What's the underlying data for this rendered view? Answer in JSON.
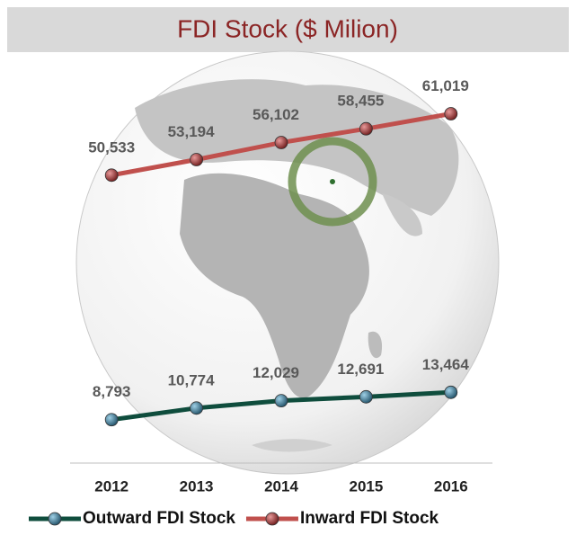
{
  "chart_data": {
    "type": "line",
    "title": "FDI Stock ($ Milion)",
    "categories": [
      "2012",
      "2013",
      "2014",
      "2015",
      "2016"
    ],
    "series": [
      {
        "name": "Outward FDI Stock",
        "color": "#0f4d3d",
        "marker_color": "#2f6f8f",
        "values": [
          8793,
          10774,
          12029,
          12691,
          13464
        ],
        "value_labels": [
          "8,793",
          "10,774",
          "12,029",
          "12,691",
          "13,464"
        ]
      },
      {
        "name": "Inward FDI Stock",
        "color": "#c0504d",
        "marker_color": "#9b2f2f",
        "values": [
          50533,
          53194,
          56102,
          58455,
          61019
        ],
        "value_labels": [
          "50,533",
          "53,194",
          "56,102",
          "58,455",
          "61,019"
        ]
      }
    ],
    "ylim": [
      0,
      70000
    ],
    "legend": "bottom"
  }
}
